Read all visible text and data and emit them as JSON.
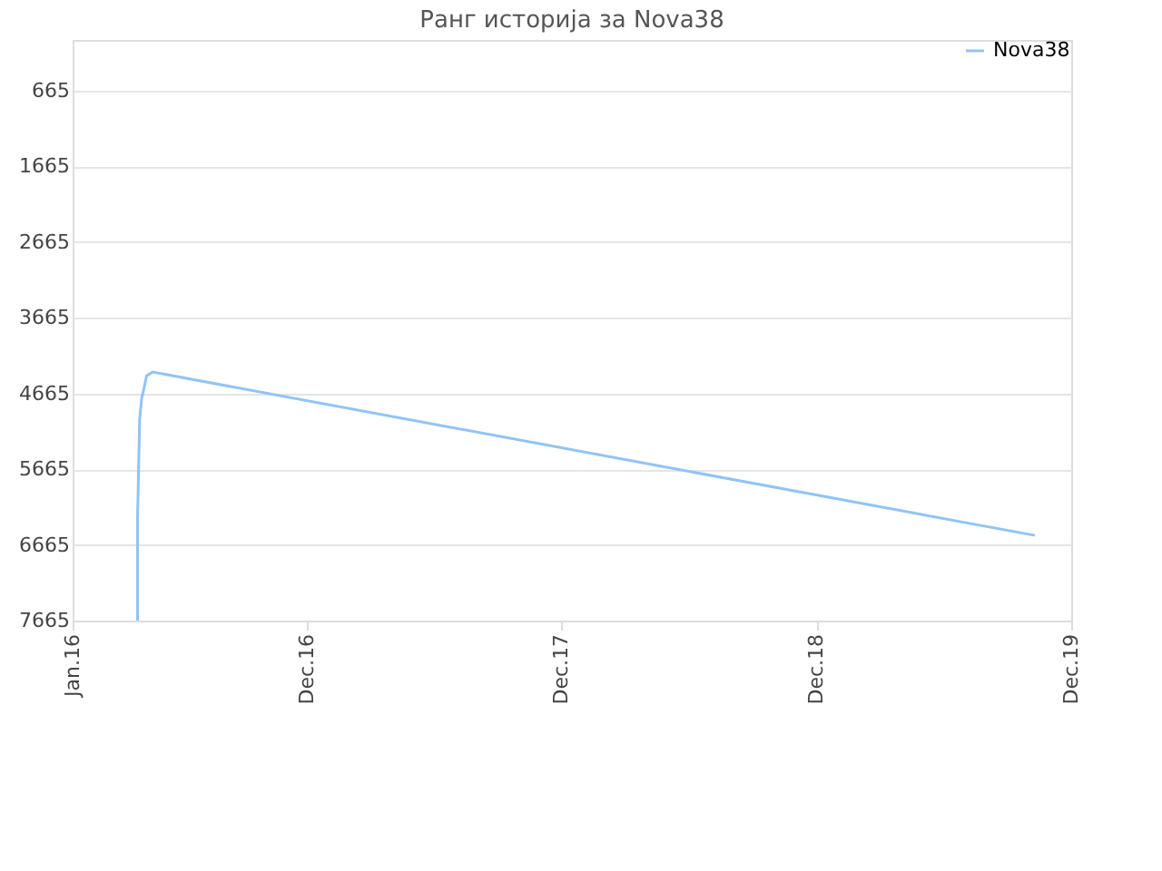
{
  "chart_data": {
    "type": "line",
    "title": "Ранг историја за Nova38",
    "series": [
      {
        "name": "Nova38",
        "color": "#90c4f5",
        "x": [
          "2016-04-03",
          "2016-04-03",
          "2016-04-06",
          "2016-04-09",
          "2016-04-11",
          "2016-04-16",
          "2016-04-25",
          "2016-05-05",
          "2019-10-10"
        ],
        "values": [
          7665,
          6300,
          5000,
          4720,
          4650,
          4430,
          4380,
          4400,
          6540
        ]
      }
    ],
    "xlim": [
      "2016-01-01",
      "2019-12-01"
    ],
    "xticks": [
      {
        "value": "2016-01-01",
        "label": "Jan.16"
      },
      {
        "value": "2016-12-01",
        "label": "Dec.16"
      },
      {
        "value": "2017-12-01",
        "label": "Dec.17"
      },
      {
        "value": "2018-12-01",
        "label": "Dec.18"
      },
      {
        "value": "2019-12-01",
        "label": "Dec.19"
      }
    ],
    "ylim": [
      7665,
      -6
    ],
    "yticks": [
      665,
      1665,
      2665,
      3665,
      4665,
      5665,
      6665,
      7665
    ],
    "grid": "y",
    "legend": "top right"
  }
}
